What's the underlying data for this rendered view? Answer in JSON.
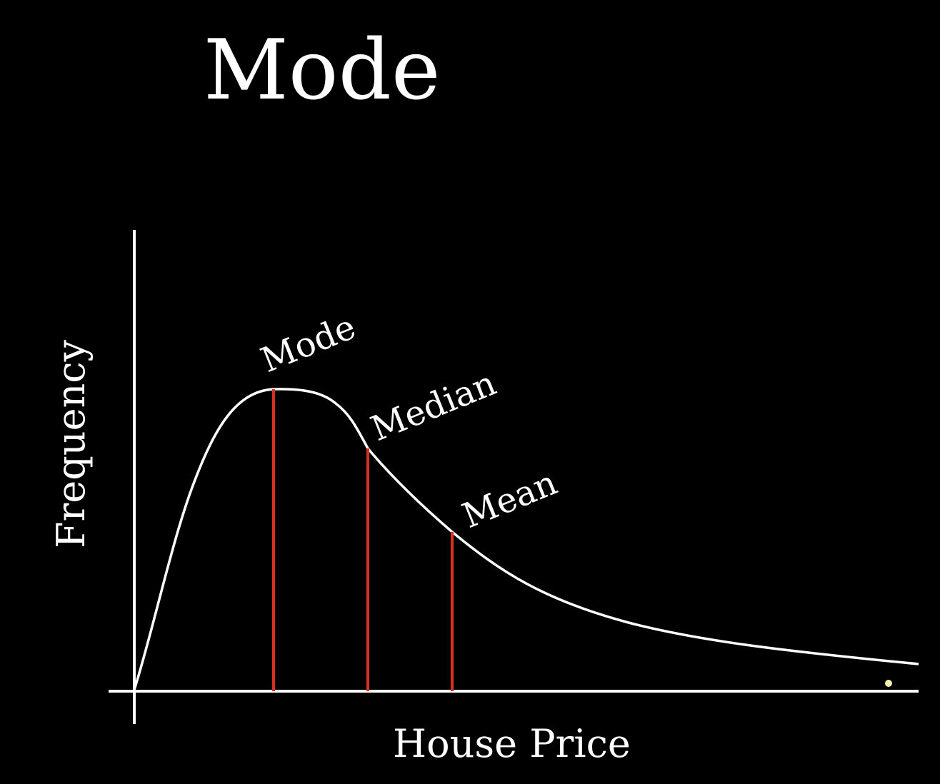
{
  "title": "Mode",
  "axes": {
    "x_label": "House Price",
    "y_label": "Frequency"
  },
  "annotations": {
    "mode": "Mode",
    "median": "Median",
    "mean": "Mean"
  },
  "colors": {
    "background": "#000000",
    "curve": "#ffffff",
    "marker_lines": "#d8321f"
  }
}
